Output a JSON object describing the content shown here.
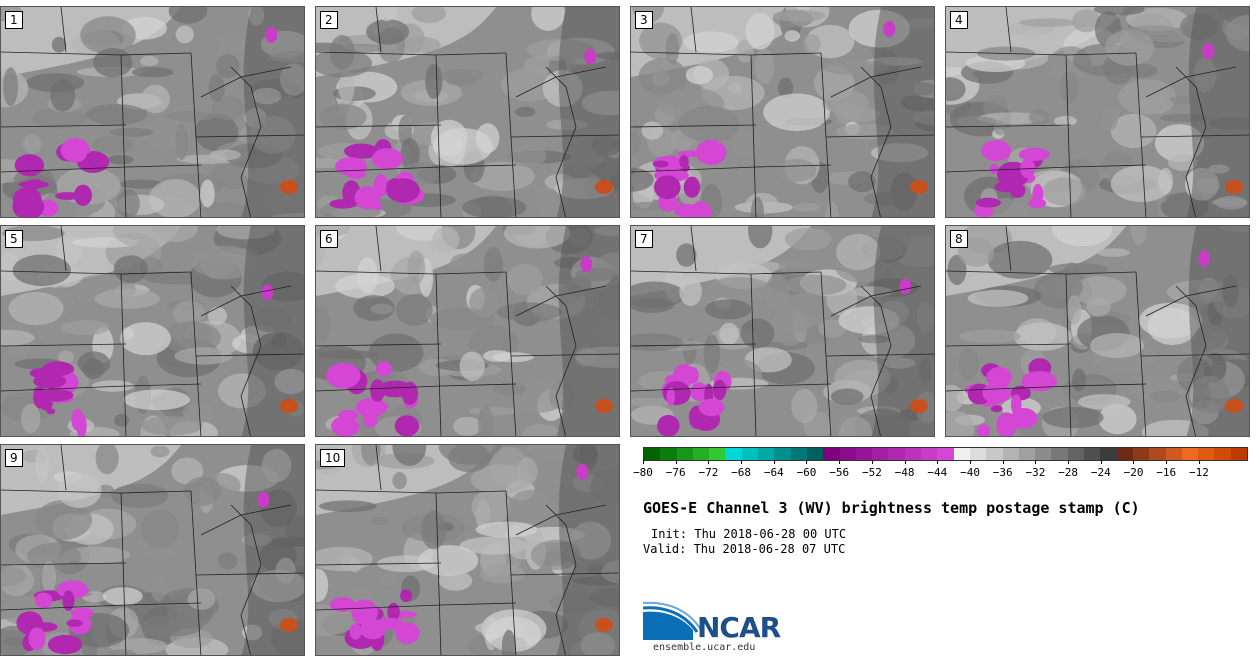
{
  "panels": [
    {
      "label": "1"
    },
    {
      "label": "2"
    },
    {
      "label": "3"
    },
    {
      "label": "4"
    },
    {
      "label": "5"
    },
    {
      "label": "6"
    },
    {
      "label": "7"
    },
    {
      "label": "8"
    },
    {
      "label": "9"
    },
    {
      "label": "10"
    }
  ],
  "colorbar": {
    "colors": [
      "#006400",
      "#0a7d0a",
      "#179617",
      "#24af24",
      "#31c831",
      "#00d8d8",
      "#00c0c0",
      "#00a8a8",
      "#009090",
      "#007878",
      "#006060",
      "#800080",
      "#8c0a8c",
      "#981498",
      "#a41ea4",
      "#b028b0",
      "#bc32bc",
      "#c83cc8",
      "#d446d4",
      "#f0f0f0",
      "#dcdcdc",
      "#c8c8c8",
      "#b4b4b4",
      "#a0a0a0",
      "#8c8c8c",
      "#787878",
      "#646464",
      "#505050",
      "#3c3c3c",
      "#6e2a14",
      "#8e3a18",
      "#ae4a1c",
      "#ce5a20",
      "#ee6a24",
      "#e05a10",
      "#d04a08",
      "#c03a04"
    ],
    "ticks": [
      "−80",
      "−76",
      "−72",
      "−68",
      "−64",
      "−60",
      "−56",
      "−52",
      "−48",
      "−44",
      "−40",
      "−36",
      "−32",
      "−28",
      "−24",
      "−20",
      "−16",
      "−12"
    ]
  },
  "title": "GOES-E Channel 3 (WV) brightness temp postage stamp (C)",
  "init": "Init: Thu 2018-06-28 00 UTC",
  "valid": "Valid: Thu 2018-06-28 07 UTC",
  "logo": {
    "name": "NCAR",
    "url": "ensemble.ucar.edu"
  }
}
